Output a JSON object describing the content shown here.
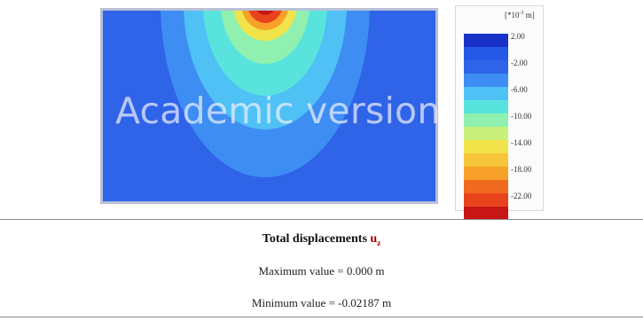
{
  "plot": {
    "watermark": "Academic version",
    "contour_colors": {
      "background": "#2f63e8",
      "band_1": "#3d8df2",
      "band_2": "#4fc1f5",
      "band_3": "#58e4dc",
      "band_4": "#8ff0b0",
      "band_5": "#f0e44a",
      "band_6": "#f7a12b",
      "band_7": "#e8431c",
      "band_8": "#c81515"
    }
  },
  "legend": {
    "unit_prefix": "[*10",
    "unit_exp": "-3",
    "unit_suffix": " m]",
    "colors": [
      "#1832c8",
      "#2458e6",
      "#2f63e8",
      "#3d8df2",
      "#4fc1f5",
      "#58e4dc",
      "#8ff0b0",
      "#c8f07a",
      "#f0e44a",
      "#f7c53a",
      "#f7a12b",
      "#ef6a1e",
      "#e8431c",
      "#c81515"
    ],
    "ticks": [
      "2.00",
      "-2.00",
      "-6.00",
      "-10.00",
      "-14.00",
      "-18.00",
      "-22.00"
    ]
  },
  "info": {
    "title_prefix": "Total displacements ",
    "title_var": "u",
    "title_sub": "z",
    "max_line": "Maximum value = 0.000 m",
    "min_line": "Minimum value = -0.02187 m"
  }
}
